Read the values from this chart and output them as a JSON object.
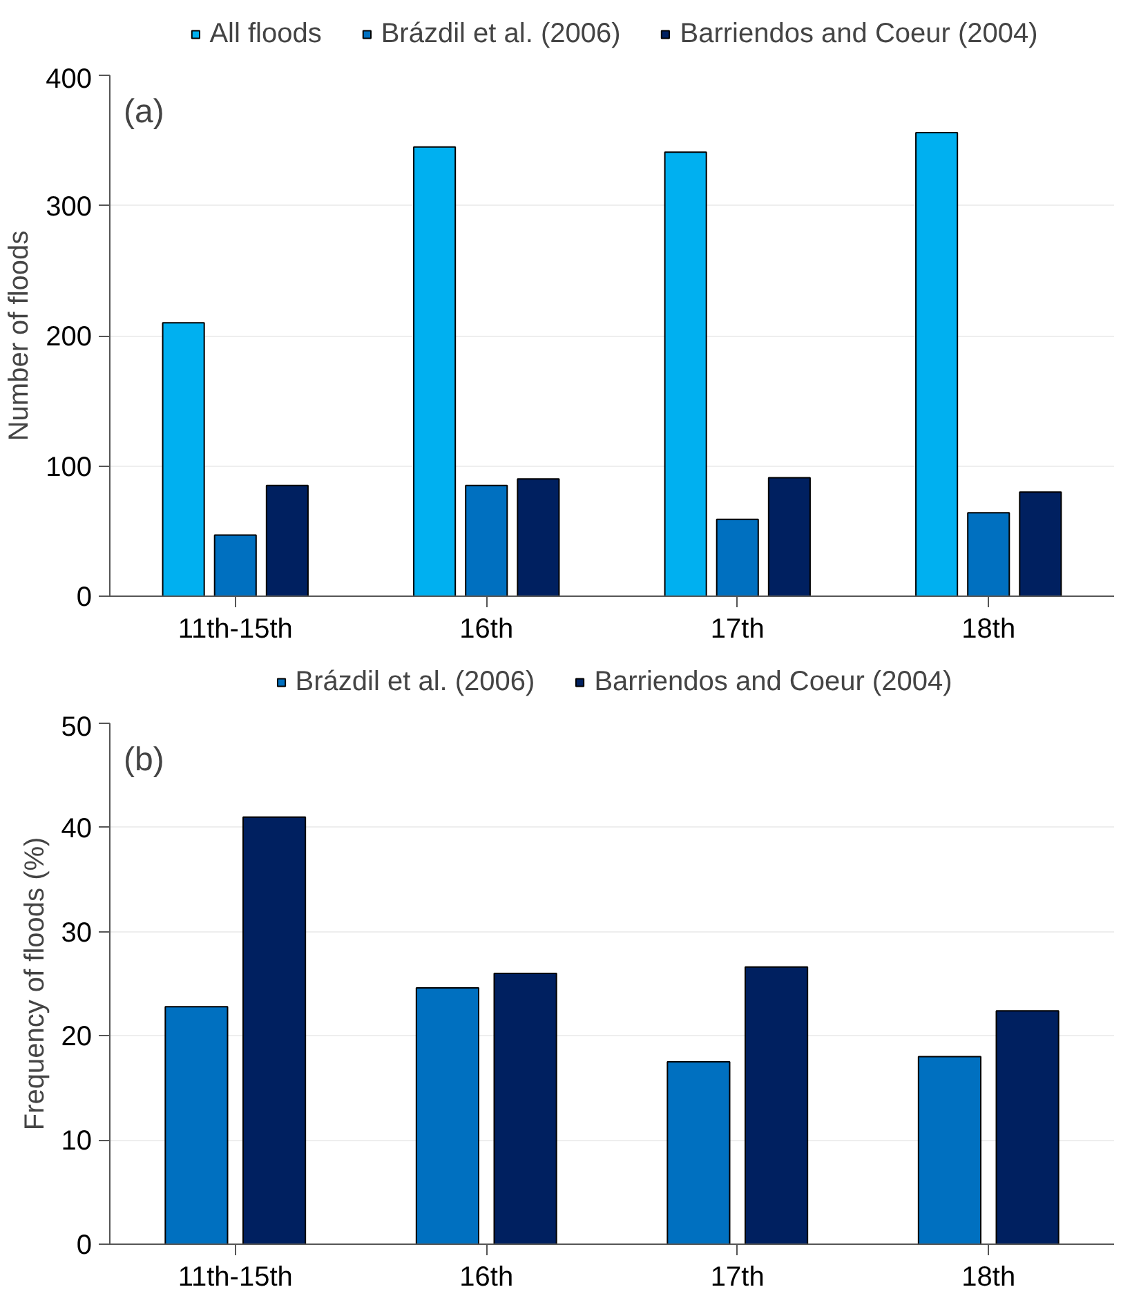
{
  "chart_data": [
    {
      "type": "bar",
      "ylabel": "Number of floods",
      "categories": [
        "11th-15th",
        "16th",
        "17th",
        "18th"
      ],
      "series": [
        {
          "name": "All floods",
          "color": "#00b0f0",
          "values": [
            210,
            345,
            341,
            356
          ]
        },
        {
          "name": "Brázdil et al. (2006)",
          "color": "#0070c0",
          "values": [
            47,
            85,
            59,
            64
          ]
        },
        {
          "name": "Barriendos and Coeur (2004)",
          "color": "#002060",
          "values": [
            85,
            90,
            91,
            80
          ]
        }
      ],
      "ylim": [
        0,
        400
      ],
      "yticks": [
        0,
        100,
        200,
        300,
        400
      ],
      "grid": "y",
      "legend": "top",
      "annotations": [
        "(a)"
      ]
    },
    {
      "type": "bar",
      "ylabel": "Frequency of floods (%)",
      "categories": [
        "11th-15th",
        "16th",
        "17th",
        "18th"
      ],
      "series": [
        {
          "name": "Brázdil et al. (2006)",
          "color": "#0070c0",
          "values": [
            22.8,
            24.6,
            17.5,
            18
          ]
        },
        {
          "name": "Barriendos and Coeur (2004)",
          "color": "#002060",
          "values": [
            41,
            26,
            26.6,
            22.4
          ]
        }
      ],
      "ylim": [
        0,
        50
      ],
      "yticks": [
        0,
        10,
        20,
        30,
        40,
        50
      ],
      "grid": "y",
      "legend": "top",
      "annotations": [
        "(b)"
      ]
    }
  ]
}
